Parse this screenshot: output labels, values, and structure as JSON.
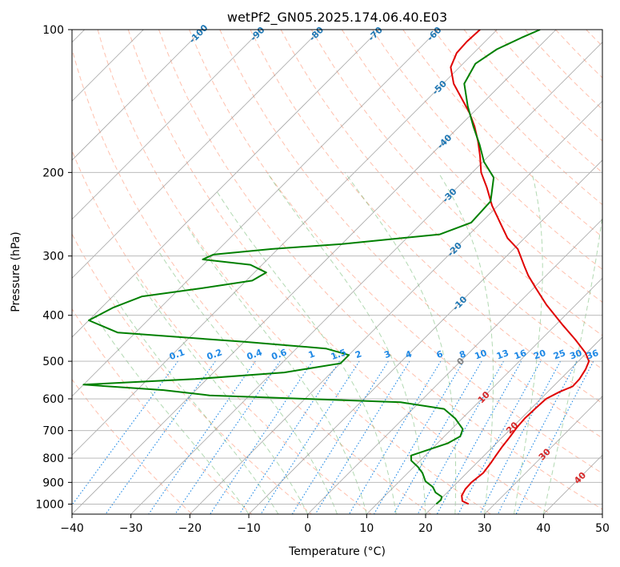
{
  "chart_data": {
    "type": "line",
    "chart_kind": "skew-T log-P diagram",
    "title": "wetPf2_GN05.2025.174.06.40.E03",
    "xlabel": "Temperature (°C)",
    "ylabel": "Pressure (hPa)",
    "xlim": [
      -40,
      50
    ],
    "ylim": [
      1050,
      100
    ],
    "yscale": "log",
    "x_ticks": [
      -40,
      -30,
      -20,
      -10,
      0,
      10,
      20,
      30,
      40,
      50
    ],
    "x_tick_labels": [
      "−40",
      "−30",
      "−20",
      "−10",
      "0",
      "10",
      "20",
      "30",
      "40",
      "50"
    ],
    "y_ticks": [
      100,
      200,
      300,
      400,
      500,
      600,
      700,
      800,
      900,
      1000
    ],
    "y_tick_labels": [
      "100",
      "200",
      "300",
      "400",
      "500",
      "600",
      "700",
      "800",
      "900",
      "1000"
    ],
    "grid": true,
    "series": [
      {
        "role": "temperature",
        "color": "#e00000",
        "points": [
          [
            1000,
            25.6
          ],
          [
            985,
            24.0
          ],
          [
            960,
            23.0
          ],
          [
            930,
            22.5
          ],
          [
            900,
            22.4
          ],
          [
            860,
            22.8
          ],
          [
            820,
            22.4
          ],
          [
            790,
            22.0
          ],
          [
            760,
            21.6
          ],
          [
            720,
            21.2
          ],
          [
            690,
            20.8
          ],
          [
            660,
            20.6
          ],
          [
            630,
            20.7
          ],
          [
            600,
            20.9
          ],
          [
            580,
            22.0
          ],
          [
            565,
            23.3
          ],
          [
            545,
            23.2
          ],
          [
            520,
            22.6
          ],
          [
            500,
            21.8
          ],
          [
            480,
            19.8
          ],
          [
            450,
            15.8
          ],
          [
            420,
            11.3
          ],
          [
            380,
            5.0
          ],
          [
            350,
            0.3
          ],
          [
            330,
            -3.0
          ],
          [
            315,
            -5.3
          ],
          [
            290,
            -9.3
          ],
          [
            275,
            -12.9
          ],
          [
            255,
            -16.8
          ],
          [
            235,
            -21.0
          ],
          [
            215,
            -25.0
          ],
          [
            200,
            -28.5
          ],
          [
            185,
            -31.4
          ],
          [
            172,
            -34.3
          ],
          [
            160,
            -37.4
          ],
          [
            150,
            -40.5
          ],
          [
            140,
            -44.2
          ],
          [
            130,
            -48.2
          ],
          [
            120,
            -51.5
          ],
          [
            112,
            -52.9
          ],
          [
            106,
            -53.1
          ],
          [
            100,
            -52.9
          ]
        ]
      },
      {
        "role": "dewpoint",
        "color": "#008000",
        "points": [
          [
            1000,
            20.1
          ],
          [
            980,
            20.2
          ],
          [
            965,
            19.8
          ],
          [
            945,
            18.0
          ],
          [
            920,
            16.6
          ],
          [
            895,
            14.4
          ],
          [
            860,
            12.5
          ],
          [
            835,
            10.7
          ],
          [
            810,
            8.5
          ],
          [
            790,
            7.6
          ],
          [
            770,
            9.4
          ],
          [
            745,
            11.7
          ],
          [
            720,
            12.7
          ],
          [
            695,
            11.9
          ],
          [
            660,
            8.8
          ],
          [
            630,
            5.3
          ],
          [
            610,
            -3.2
          ],
          [
            600,
            -20.0
          ],
          [
            590,
            -36.8
          ],
          [
            575,
            -45.5
          ],
          [
            560,
            -60.0
          ],
          [
            545,
            -42.0
          ],
          [
            528,
            -28.0
          ],
          [
            505,
            -20.0
          ],
          [
            485,
            -20.0
          ],
          [
            470,
            -25.0
          ],
          [
            455,
            -40.0
          ],
          [
            435,
            -63.0
          ],
          [
            410,
            -70.0
          ],
          [
            385,
            -68.0
          ],
          [
            365,
            -65.0
          ],
          [
            352,
            -57.0
          ],
          [
            338,
            -49.0
          ],
          [
            325,
            -48.0
          ],
          [
            313,
            -52.0
          ],
          [
            305,
            -61.0
          ],
          [
            298,
            -60.0
          ],
          [
            290,
            -51.0
          ],
          [
            283,
            -40.0
          ],
          [
            270,
            -25.0
          ],
          [
            255,
            -21.7
          ],
          [
            230,
            -22.0
          ],
          [
            205,
            -25.5
          ],
          [
            190,
            -29.8
          ],
          [
            175,
            -33.4
          ],
          [
            160,
            -37.6
          ],
          [
            145,
            -42.0
          ],
          [
            130,
            -46.4
          ],
          [
            118,
            -47.9
          ],
          [
            110,
            -46.7
          ],
          [
            104,
            -44.5
          ],
          [
            100,
            -42.7
          ]
        ]
      }
    ],
    "isotherm_labels": [
      "-100",
      "-90",
      "-80",
      "-70",
      "-60",
      "-50",
      "-40",
      "-30",
      "-20",
      "-10",
      "0",
      "10",
      "20",
      "30",
      "40"
    ],
    "mixing_ratio_labels": [
      "0.1",
      "0.2",
      "0.4",
      "0.6",
      "1",
      "1.5",
      "2",
      "3",
      "4",
      "6",
      "8",
      "10",
      "13",
      "16",
      "20",
      "25",
      "30",
      "36"
    ],
    "colors": {
      "isotherm_cold_label": "#1f77b4",
      "isotherm_warm_label": "#d62728",
      "zero_isotherm_label": "#808080",
      "mixing_ratio": "#1e88e5",
      "dry_adiabat": "#ff8c69",
      "moist_adiabat": "#55aa55",
      "skewed_isotherm": "#909090"
    }
  }
}
